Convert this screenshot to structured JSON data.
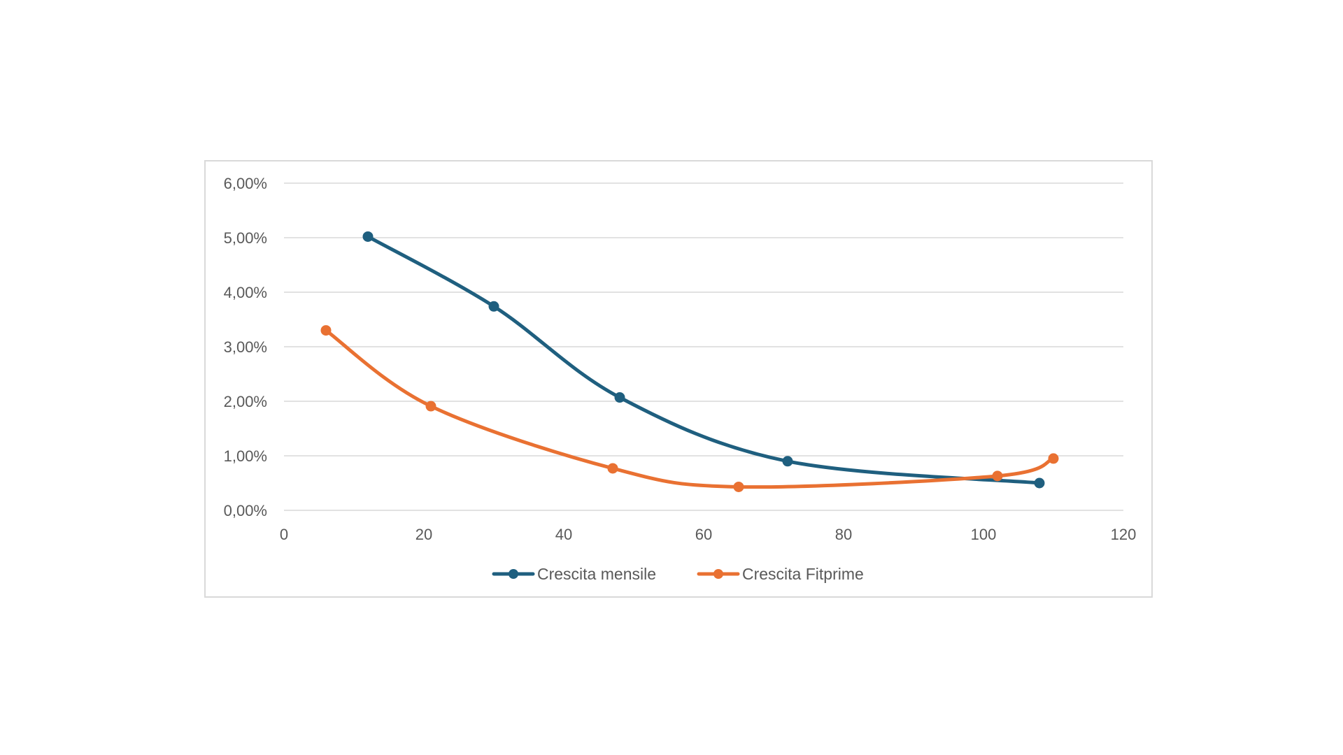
{
  "chart_data": {
    "type": "line",
    "title": "",
    "xlabel": "",
    "ylabel": "",
    "xlim": [
      0,
      120
    ],
    "ylim": [
      0,
      0.06
    ],
    "x_ticks": [
      {
        "value": 0,
        "label": "0"
      },
      {
        "value": 20,
        "label": "20"
      },
      {
        "value": 40,
        "label": "40"
      },
      {
        "value": 60,
        "label": "60"
      },
      {
        "value": 80,
        "label": "80"
      },
      {
        "value": 100,
        "label": "100"
      },
      {
        "value": 120,
        "label": "120"
      }
    ],
    "y_ticks": [
      {
        "value": 0,
        "label": "0,00%"
      },
      {
        "value": 0.01,
        "label": "1,00%"
      },
      {
        "value": 0.02,
        "label": "2,00%"
      },
      {
        "value": 0.03,
        "label": "3,00%"
      },
      {
        "value": 0.04,
        "label": "4,00%"
      },
      {
        "value": 0.05,
        "label": "5,00%"
      },
      {
        "value": 0.06,
        "label": "6,00%"
      }
    ],
    "grid": "horizontal",
    "smooth": true,
    "legend_position": "bottom",
    "series": [
      {
        "name": "Crescita mensile",
        "color": "#1f5f7f",
        "x": [
          12,
          30,
          48,
          72,
          108
        ],
        "y": [
          0.0502,
          0.0374,
          0.0207,
          0.009,
          0.005
        ]
      },
      {
        "name": "Crescita Fitprime",
        "color": "#e97132",
        "x": [
          6,
          21,
          47,
          65,
          102,
          110
        ],
        "y": [
          0.033,
          0.0191,
          0.0077,
          0.0043,
          0.0063,
          0.0095
        ]
      }
    ]
  }
}
